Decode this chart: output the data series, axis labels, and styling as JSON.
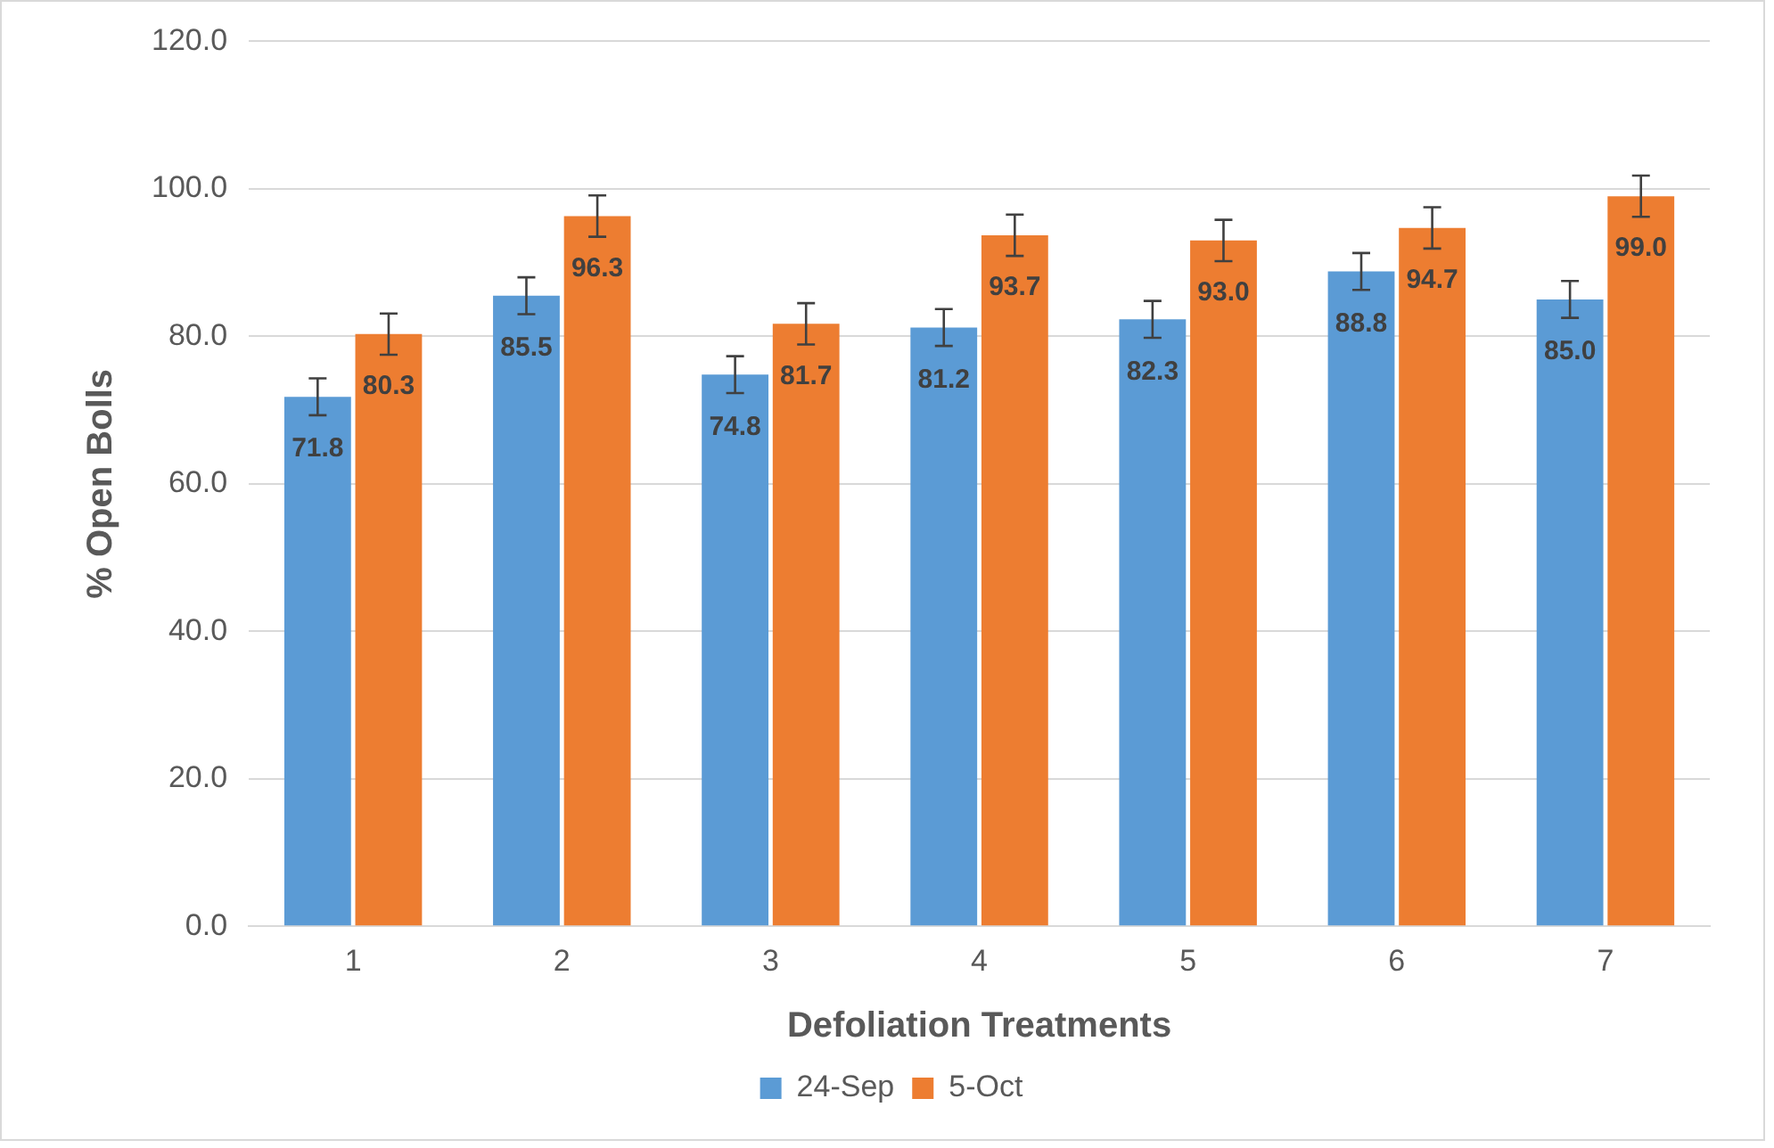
{
  "chart_data": {
    "type": "bar",
    "xlabel": "Defoliation Treatments",
    "ylabel": "% Open Bolls",
    "categories": [
      "1",
      "2",
      "3",
      "4",
      "5",
      "6",
      "7"
    ],
    "series": [
      {
        "name": "24-Sep",
        "color": "#5b9bd5",
        "values": [
          71.8,
          85.5,
          74.8,
          81.2,
          82.3,
          88.8,
          85.0
        ],
        "value_labels": [
          "71.8",
          "85.5",
          "74.8",
          "81.2",
          "82.3",
          "88.8",
          "85.0"
        ],
        "errors": [
          2.5,
          2.5,
          2.5,
          2.5,
          2.5,
          2.5,
          2.5
        ]
      },
      {
        "name": "5-Oct",
        "color": "#ed7d31",
        "values": [
          80.3,
          96.3,
          81.7,
          93.7,
          93.0,
          94.7,
          99.0
        ],
        "value_labels": [
          "80.3",
          "96.3",
          "81.7",
          "93.7",
          "93.0",
          "94.7",
          "99.0"
        ],
        "errors": [
          2.8,
          2.8,
          2.8,
          2.8,
          2.8,
          2.8,
          2.8
        ]
      }
    ],
    "ylim": [
      0,
      120
    ],
    "yticks": [
      {
        "value": 0,
        "label": "0.0"
      },
      {
        "value": 20,
        "label": "20.0"
      },
      {
        "value": 40,
        "label": "40.0"
      },
      {
        "value": 60,
        "label": "60.0"
      },
      {
        "value": 80,
        "label": "80.0"
      },
      {
        "value": 100,
        "label": "100.0"
      },
      {
        "value": 120,
        "label": "120.0"
      }
    ],
    "grid": "y",
    "legend": "bottom"
  }
}
